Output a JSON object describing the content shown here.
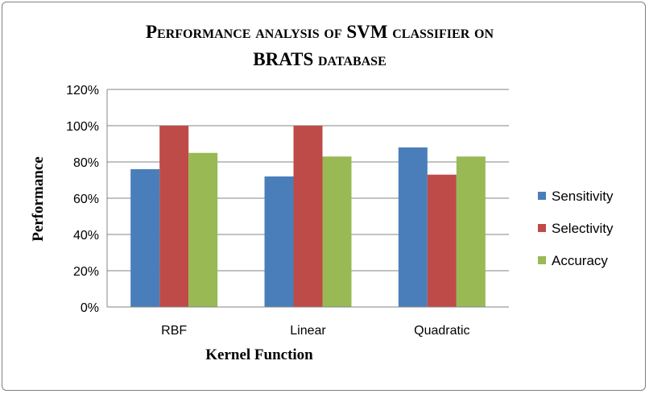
{
  "chart_data": {
    "type": "bar",
    "title_line1": "Performance analysis of SVM classifier on",
    "title_line2": "BRATS database",
    "xlabel": "Kernel Function",
    "ylabel": "Performance",
    "categories": [
      "RBF",
      "Linear",
      "Quadratic"
    ],
    "series": [
      {
        "name": "Sensitivity",
        "color": "#4a7ebb",
        "values": [
          76,
          72,
          88
        ]
      },
      {
        "name": "Selectivity",
        "color": "#be4b48",
        "values": [
          100,
          100,
          73
        ]
      },
      {
        "name": "Accuracy",
        "color": "#98b954",
        "values": [
          85,
          83,
          83
        ]
      }
    ],
    "yticks": [
      "0%",
      "20%",
      "40%",
      "60%",
      "80%",
      "100%",
      "120%"
    ],
    "ylim": [
      0,
      120
    ],
    "grid": true,
    "legend_position": "right"
  }
}
